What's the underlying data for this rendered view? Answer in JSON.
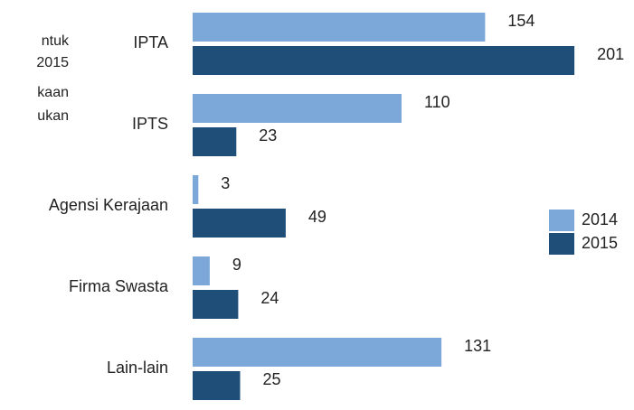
{
  "chart_data": {
    "type": "bar",
    "orientation": "horizontal",
    "annotation_lines": [
      "ntuk",
      "2015",
      "kaan",
      "ukan"
    ],
    "categories": [
      "IPTA",
      "IPTS",
      "Agensi Kerajaan",
      "Firma Swasta",
      "Lain-lain"
    ],
    "series": [
      {
        "name": "2014",
        "color": "#7ba7d9",
        "values": [
          154,
          110,
          3,
          9,
          131
        ]
      },
      {
        "name": "2015",
        "color": "#1f4e79",
        "values": [
          201,
          23,
          49,
          24,
          25
        ]
      }
    ],
    "legend": "right"
  }
}
